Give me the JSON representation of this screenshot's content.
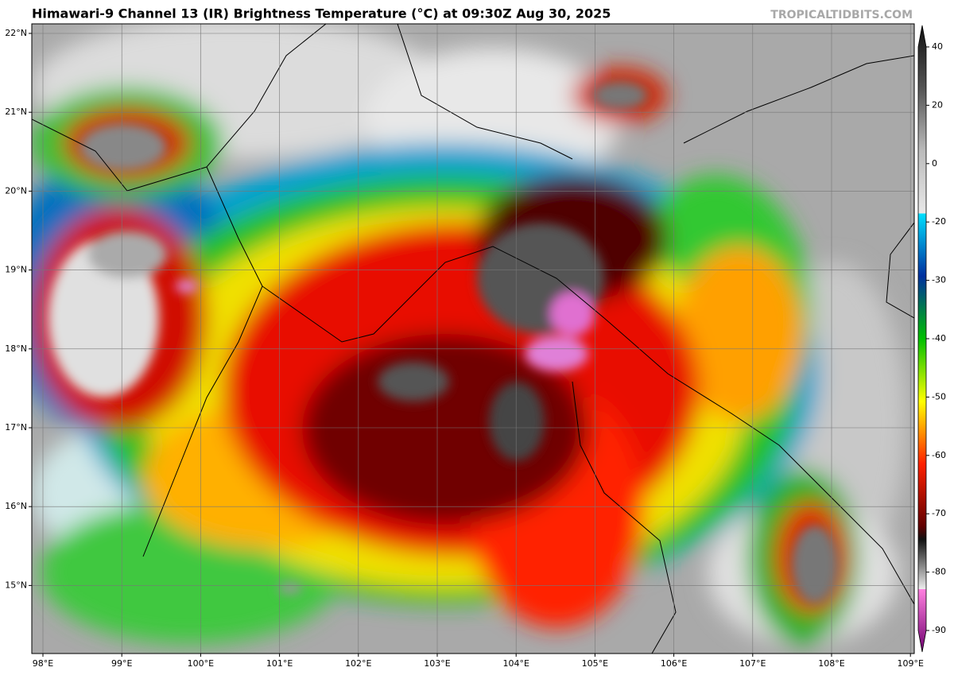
{
  "header": {
    "title": "Himawari-9 Channel 13 (IR) Brightness Temperature (°C) at 09:30Z Aug 30, 2025",
    "credit": "TROPICALTIDBITS.COM"
  },
  "map": {
    "lat_labels": [
      "22°N",
      "21°N",
      "20°N",
      "19°N",
      "18°N",
      "17°N",
      "16°N",
      "15°N"
    ],
    "lon_labels": [
      "98°E",
      "99°E",
      "100°E",
      "101°E",
      "102°E",
      "103°E",
      "104°E",
      "105°E",
      "106°E",
      "107°E",
      "108°E",
      "109°E"
    ]
  },
  "colorbar": {
    "ticks": [
      40,
      20,
      0,
      -20,
      -30,
      -40,
      -50,
      -60,
      -70,
      -80,
      -90
    ]
  }
}
